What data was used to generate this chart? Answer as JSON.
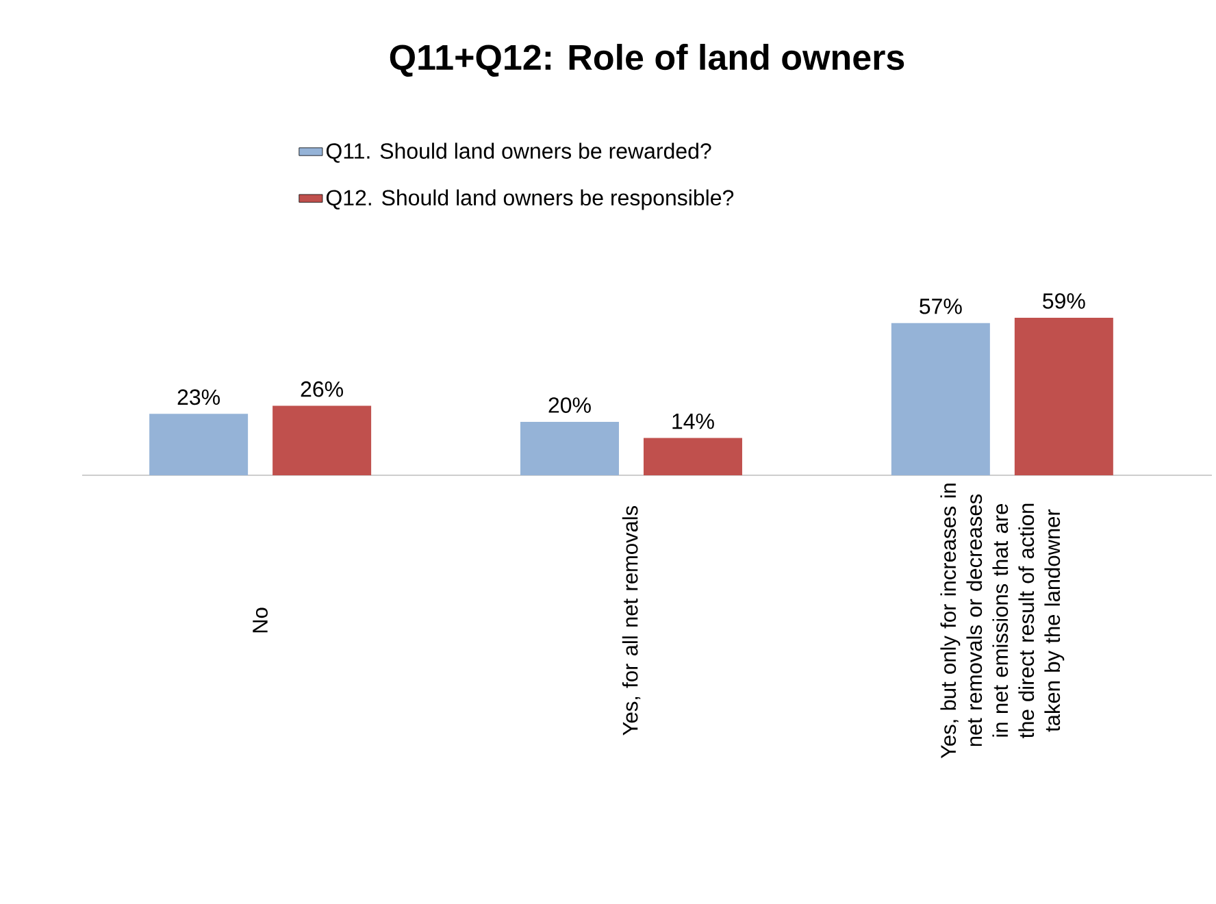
{
  "chart_data": {
    "type": "bar",
    "title": "Q11+Q12: Role of land owners",
    "categories": [
      "No",
      "Yes, for all net removals",
      "Yes, but only for increases in net removals or decreases in net emissions that are the direct result of action taken by the landowner"
    ],
    "series": [
      {
        "name": "Q11. Should land owners  be rewarded?",
        "color": "#95b3d7",
        "values": [
          23,
          20,
          57
        ],
        "value_labels": [
          "23%",
          "20%",
          "57%"
        ]
      },
      {
        "name": "Q12. Should land owners  be responsible?",
        "color": "#c0504d",
        "values": [
          26,
          14,
          59
        ],
        "value_labels": [
          "26%",
          "14%",
          "59%"
        ]
      }
    ],
    "legend": "top",
    "grid": false
  }
}
